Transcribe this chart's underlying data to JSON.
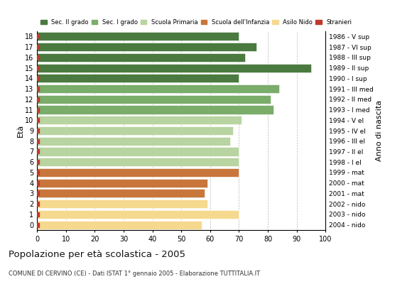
{
  "ages": [
    18,
    17,
    16,
    15,
    14,
    13,
    12,
    11,
    10,
    9,
    8,
    7,
    6,
    5,
    4,
    3,
    2,
    1,
    0
  ],
  "birth_years": [
    "1986 - V sup",
    "1987 - VI sup",
    "1988 - III sup",
    "1989 - II sup",
    "1990 - I sup",
    "1991 - III med",
    "1992 - II med",
    "1993 - I med",
    "1994 - V el",
    "1995 - IV el",
    "1996 - III el",
    "1997 - II el",
    "1998 - I el",
    "1999 - mat",
    "2000 - mat",
    "2001 - mat",
    "2002 - nido",
    "2003 - nido",
    "2004 - nido"
  ],
  "bar_values": [
    70,
    76,
    72,
    95,
    70,
    84,
    81,
    82,
    71,
    68,
    67,
    70,
    70,
    70,
    59,
    58,
    59,
    70,
    57
  ],
  "bar_colors": [
    "#4a7a3f",
    "#4a7a3f",
    "#4a7a3f",
    "#4a7a3f",
    "#4a7a3f",
    "#7aac6a",
    "#7aac6a",
    "#7aac6a",
    "#b8d4a0",
    "#b8d4a0",
    "#b8d4a0",
    "#b8d4a0",
    "#b8d4a0",
    "#c8763c",
    "#c8763c",
    "#c8763c",
    "#f5d98e",
    "#f5d98e",
    "#f5d98e"
  ],
  "stranieri_color": "#c0392b",
  "legend_labels": [
    "Sec. II grado",
    "Sec. I grado",
    "Scuola Primaria",
    "Scuola dell'Infanzia",
    "Asilo Nido",
    "Stranieri"
  ],
  "legend_colors": [
    "#4a7a3f",
    "#7aac6a",
    "#b8d4a0",
    "#c8763c",
    "#f5d98e",
    "#c0392b"
  ],
  "ylabel": "Età",
  "right_label": "Anno di nascita",
  "title": "Popolazione per età scolastica - 2005",
  "subtitle": "COMUNE DI CERVINO (CE) - Dati ISTAT 1° gennaio 2005 - Elaborazione TUTTITALIA.IT",
  "xlim": [
    0,
    100
  ],
  "xticks": [
    0,
    10,
    20,
    30,
    40,
    50,
    60,
    70,
    80,
    90,
    100
  ],
  "grid_color": "#aaaaaa",
  "bg_color": "#ffffff"
}
